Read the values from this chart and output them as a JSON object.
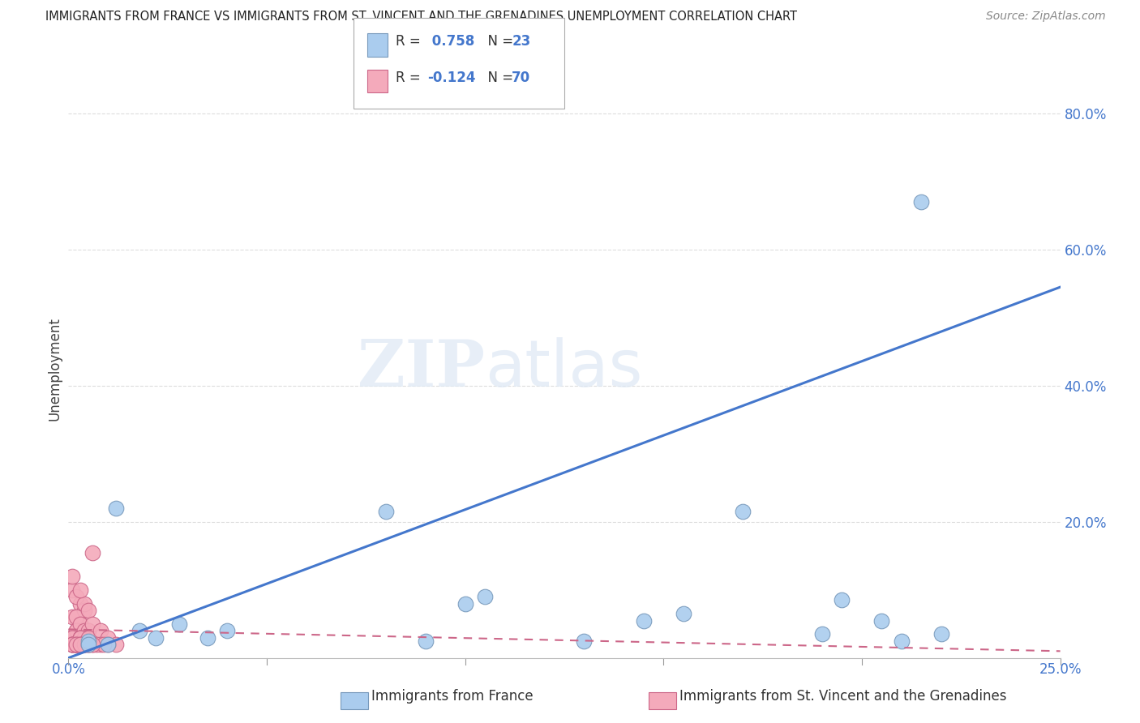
{
  "title": "IMMIGRANTS FROM FRANCE VS IMMIGRANTS FROM ST. VINCENT AND THE GRENADINES UNEMPLOYMENT CORRELATION CHART",
  "source": "Source: ZipAtlas.com",
  "xlabel_blue": "Immigrants from France",
  "xlabel_pink": "Immigrants from St. Vincent and the Grenadines",
  "ylabel": "Unemployment",
  "xlim": [
    0.0,
    0.25
  ],
  "ylim": [
    0.0,
    0.85
  ],
  "xticks": [
    0.0,
    0.05,
    0.1,
    0.15,
    0.2,
    0.25
  ],
  "yticks": [
    0.2,
    0.4,
    0.6,
    0.8
  ],
  "ytick_labels": [
    "20.0%",
    "40.0%",
    "60.0%",
    "80.0%"
  ],
  "xtick_labels": [
    "0.0%",
    "",
    "",
    "",
    "",
    "25.0%"
  ],
  "R_blue": 0.758,
  "N_blue": 23,
  "R_pink": -0.124,
  "N_pink": 70,
  "blue_scatter_x": [
    0.005,
    0.012,
    0.018,
    0.022,
    0.028,
    0.035,
    0.04,
    0.08,
    0.09,
    0.1,
    0.105,
    0.13,
    0.145,
    0.155,
    0.17,
    0.19,
    0.195,
    0.205,
    0.21,
    0.215,
    0.22,
    0.005,
    0.01
  ],
  "blue_scatter_y": [
    0.025,
    0.22,
    0.04,
    0.03,
    0.05,
    0.03,
    0.04,
    0.215,
    0.025,
    0.08,
    0.09,
    0.025,
    0.055,
    0.065,
    0.215,
    0.035,
    0.085,
    0.055,
    0.025,
    0.67,
    0.035,
    0.02,
    0.02
  ],
  "pink_scatter_x": [
    0.001,
    0.002,
    0.001,
    0.003,
    0.001,
    0.002,
    0.003,
    0.004,
    0.002,
    0.001,
    0.003,
    0.005,
    0.002,
    0.004,
    0.003,
    0.001,
    0.002,
    0.006,
    0.004,
    0.003,
    0.005,
    0.002,
    0.001,
    0.003,
    0.004,
    0.002,
    0.001,
    0.003,
    0.001,
    0.002,
    0.003,
    0.004,
    0.005,
    0.002,
    0.001,
    0.003,
    0.002,
    0.004,
    0.003,
    0.002,
    0.005,
    0.003,
    0.004,
    0.002,
    0.003,
    0.004,
    0.005,
    0.003,
    0.002,
    0.004,
    0.006,
    0.003,
    0.002,
    0.004,
    0.005,
    0.003,
    0.001,
    0.002,
    0.004,
    0.003,
    0.008,
    0.01,
    0.012,
    0.006,
    0.008,
    0.01,
    0.005,
    0.007,
    0.009,
    0.006
  ],
  "pink_scatter_y": [
    0.02,
    0.04,
    0.06,
    0.08,
    0.1,
    0.03,
    0.05,
    0.07,
    0.09,
    0.12,
    0.02,
    0.04,
    0.06,
    0.08,
    0.1,
    0.02,
    0.04,
    0.155,
    0.03,
    0.05,
    0.07,
    0.02,
    0.03,
    0.02,
    0.04,
    0.02,
    0.02,
    0.03,
    0.02,
    0.02,
    0.02,
    0.03,
    0.04,
    0.02,
    0.02,
    0.03,
    0.02,
    0.02,
    0.03,
    0.02,
    0.02,
    0.02,
    0.03,
    0.02,
    0.02,
    0.03,
    0.02,
    0.02,
    0.02,
    0.02,
    0.05,
    0.03,
    0.02,
    0.02,
    0.03,
    0.02,
    0.02,
    0.02,
    0.02,
    0.02,
    0.04,
    0.03,
    0.02,
    0.02,
    0.02,
    0.02,
    0.02,
    0.02,
    0.02,
    0.02
  ],
  "blue_color": "#aaccee",
  "blue_edge_color": "#7799bb",
  "pink_color": "#f4aabb",
  "pink_edge_color": "#cc6688",
  "blue_line_color": "#4477cc",
  "pink_line_color": "#cc6688",
  "blue_line_x0": 0.0,
  "blue_line_y0": 0.0,
  "blue_line_x1": 0.25,
  "blue_line_y1": 0.545,
  "pink_line_x0": 0.0,
  "pink_line_y0": 0.042,
  "pink_line_x1": 0.25,
  "pink_line_y1": 0.01,
  "watermark_zip": "ZIP",
  "watermark_atlas": "atlas",
  "background_color": "#ffffff",
  "grid_color": "#dddddd"
}
